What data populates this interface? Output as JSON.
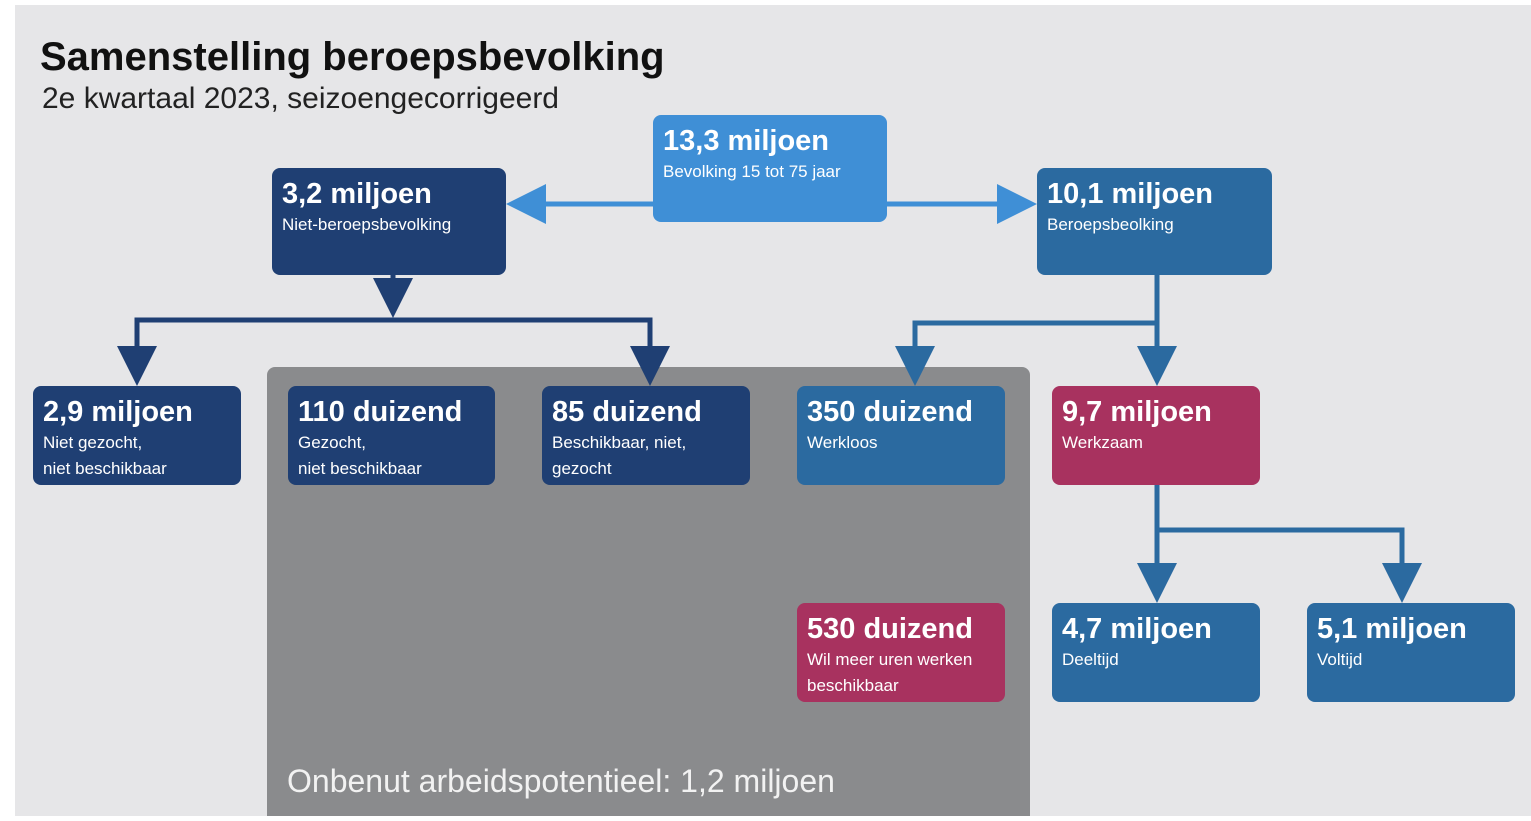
{
  "title": "Samenstelling beroepsbevolking",
  "subtitle": "2e kwartaal 2023, seizoengecorrigeerd",
  "nodes": [
    {
      "value": "13,3 miljoen",
      "label": [
        "Bevolking 15 tot 75 jaar"
      ]
    },
    {
      "value": "3,2 miljoen",
      "label": [
        "Niet-beroepsbevolking"
      ]
    },
    {
      "value": "10,1 miljoen",
      "label": [
        "Beroepsbeolking"
      ]
    },
    {
      "value": "2,9 miljoen",
      "label": [
        "Niet gezocht,",
        "niet beschikbaar"
      ]
    },
    {
      "value": "110 duizend",
      "label": [
        "Gezocht,",
        "niet beschikbaar"
      ]
    },
    {
      "value": "85 duizend",
      "label": [
        "Beschikbaar, niet,",
        "gezocht"
      ]
    },
    {
      "value": "350 duizend",
      "label": [
        "Werkloos"
      ]
    },
    {
      "value": "9,7 miljoen",
      "label": [
        "Werkzaam"
      ]
    },
    {
      "value": "530 duizend",
      "label": [
        "Wil meer uren werken",
        "beschikbaar"
      ]
    },
    {
      "value": "4,7 miljoen",
      "label": [
        "Deeltijd"
      ]
    },
    {
      "value": "5,1 miljoen",
      "label": [
        "Voltijd"
      ]
    }
  ],
  "footer": "Onbenut arbeidspotentieel: 1,2 miljoen"
}
